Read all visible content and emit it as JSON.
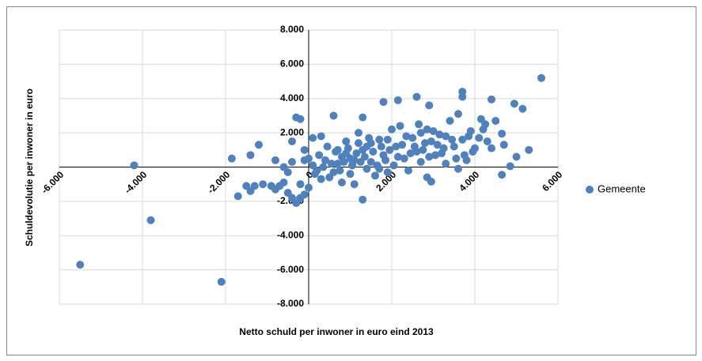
{
  "chart_data": {
    "type": "scatter",
    "x_label": "Netto schuld per inwoner in euro eind 2013",
    "y_label": "Schuldevolutie per inwoner in euro",
    "xlim": [
      -6000,
      6000
    ],
    "ylim": [
      -8000,
      8000
    ],
    "xticks": [
      {
        "value": -6000,
        "label": "-6.000"
      },
      {
        "value": -4000,
        "label": "-4.000"
      },
      {
        "value": -2000,
        "label": "-2.000"
      },
      0,
      {
        "value": 2000,
        "label": "2.000"
      },
      {
        "value": 4000,
        "label": "4.000"
      },
      {
        "value": 6000,
        "label": "6.000"
      }
    ],
    "yticks": [
      {
        "value": -8000,
        "label": "-8.000"
      },
      {
        "value": -6000,
        "label": "-6.000"
      },
      {
        "value": -4000,
        "label": "-4.000"
      },
      {
        "value": -2000,
        "label": "-2.000"
      },
      {
        "value": 2000,
        "label": "2.000"
      },
      {
        "value": 4000,
        "label": "4.000"
      },
      {
        "value": 6000,
        "label": "6.000"
      },
      {
        "value": 8000,
        "label": "8.000"
      }
    ],
    "grid": true,
    "legend": "right",
    "x": [
      -5500,
      -4200,
      -3800,
      -2100,
      5600,
      3700,
      3700,
      4400,
      4950,
      5150,
      2600,
      2150,
      1800,
      2900,
      4150,
      4250,
      4650,
      5300,
      5000,
      4850,
      4650,
      2850,
      2950,
      1300,
      -1850,
      -1700,
      -1500,
      -1300,
      -1400,
      -1100,
      -900,
      -800,
      -700,
      -600,
      -500,
      -400,
      -300,
      -200,
      -100,
      0,
      -200,
      -1200,
      -1400,
      -800,
      -600,
      -500,
      -400,
      -300,
      -400,
      -200,
      -100,
      0,
      100,
      200,
      300,
      400,
      500,
      600,
      700,
      800,
      900,
      1000,
      1100,
      1200,
      1300,
      1400,
      1500,
      1600,
      1700,
      1800,
      1900,
      2000,
      2100,
      2200,
      2300,
      2400,
      2500,
      2600,
      2700,
      2800,
      2900,
      3000,
      3100,
      3200,
      3300,
      3400,
      3500,
      3600,
      3700,
      3800,
      3900,
      4000,
      4100,
      4300,
      4500,
      4700,
      3600,
      3300,
      2700,
      250,
      350,
      550,
      650,
      750,
      850,
      950,
      1050,
      1150,
      1250,
      1350,
      1450,
      1550,
      1650,
      1750,
      1850,
      1950,
      2050,
      2150,
      2250,
      2350,
      2450,
      2550,
      2650,
      2750,
      2850,
      2950,
      3050,
      3150,
      3250,
      3450,
      3550,
      3750,
      3850,
      3950,
      4200,
      4400,
      600,
      800,
      1000,
      1200,
      1400,
      700,
      900,
      1100,
      1300,
      1500,
      1700,
      1900,
      -100,
      100,
      300,
      450,
      150
    ],
    "series": [
      {
        "name": "Gemeente",
        "color": "#4f81bd",
        "values": [
          -5700,
          100,
          -3100,
          -6700,
          5200,
          4400,
          4100,
          3950,
          3700,
          3400,
          4100,
          3900,
          3800,
          3600,
          2800,
          2500,
          1950,
          1000,
          600,
          50,
          -450,
          -600,
          -850,
          -1900,
          500,
          -1700,
          -1100,
          -1100,
          -1400,
          -1000,
          -1100,
          -1300,
          -1100,
          -900,
          -1500,
          -1800,
          -2100,
          -1800,
          -1600,
          -1200,
          -1000,
          1300,
          700,
          400,
          0,
          -300,
          300,
          2900,
          1500,
          2800,
          1000,
          500,
          1700,
          -200,
          1800,
          400,
          -600,
          3000,
          1000,
          -900,
          1500,
          500,
          -1000,
          2000,
          2900,
          1200,
          300,
          -500,
          1600,
          700,
          -300,
          2200,
          1200,
          2400,
          500,
          -200,
          1700,
          900,
          2000,
          1400,
          600,
          2100,
          1300,
          800,
          1800,
          2700,
          1200,
          3100,
          1600,
          400,
          2100,
          1100,
          1700,
          1500,
          2700,
          1300,
          -100,
          200,
          300,
          700,
          0,
          200,
          900,
          -200,
          300,
          1100,
          100,
          800,
          300,
          600,
          1700,
          900,
          100,
          1200,
          400,
          1000,
          100,
          600,
          1300,
          1800,
          800,
          1200,
          2500,
          1000,
          2200,
          1500,
          700,
          1900,
          1100,
          1600,
          500,
          700,
          1800,
          900,
          2200,
          1100,
          -300,
          600,
          -400,
          1400,
          -100,
          200,
          800,
          400,
          1000,
          1400,
          -100,
          1600,
          400,
          100,
          -700,
          1200,
          -400
        ]
      }
    ]
  }
}
